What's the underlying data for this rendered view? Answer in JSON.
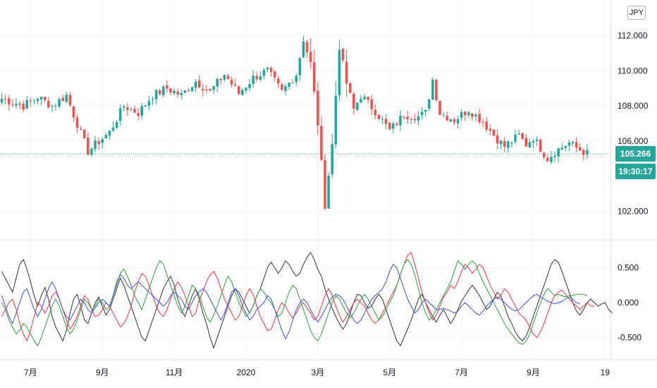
{
  "currency_label": "JPY",
  "last_price": "105.266",
  "countdown": "19:30:17",
  "colors": {
    "up": "#26a69a",
    "down": "#ef5350",
    "osc_black": "#333333",
    "osc_red": "#f23645",
    "osc_green": "#2e9e3f",
    "osc_blue": "#3d4fe0",
    "grid": "#f0f3fa"
  },
  "chart_data": [
    {
      "type": "candlestick",
      "title": "",
      "y_ticks": [
        "112.000",
        "110.000",
        "108.000",
        "106.000",
        "102.000"
      ],
      "y_tick_values": [
        112,
        110,
        108,
        106,
        102
      ],
      "ylim": [
        100.7,
        112.9
      ],
      "last_value": 105.266,
      "x_ticks": [
        "7月",
        "9月",
        "11月",
        "2020",
        "3月",
        "5月",
        "7月",
        "9月",
        "19"
      ],
      "x_tick_index": [
        8,
        28,
        48,
        68,
        88,
        108,
        128,
        148,
        168
      ],
      "n_bars": 170,
      "anchors": [
        [
          0,
          108.4
        ],
        [
          6,
          108.0
        ],
        [
          10,
          108.5
        ],
        [
          14,
          108.0
        ],
        [
          18,
          108.6
        ],
        [
          20,
          107.5
        ],
        [
          24,
          105.4
        ],
        [
          26,
          105.8
        ],
        [
          30,
          106.5
        ],
        [
          34,
          108.0
        ],
        [
          38,
          107.6
        ],
        [
          42,
          108.6
        ],
        [
          46,
          109.0
        ],
        [
          50,
          108.6
        ],
        [
          54,
          109.4
        ],
        [
          58,
          108.8
        ],
        [
          62,
          109.8
        ],
        [
          66,
          108.7
        ],
        [
          70,
          109.6
        ],
        [
          74,
          110.0
        ],
        [
          78,
          108.8
        ],
        [
          82,
          109.8
        ],
        [
          84,
          111.8
        ],
        [
          86,
          110.4
        ],
        [
          88,
          107.0
        ],
        [
          90,
          102.4
        ],
        [
          92,
          105.8
        ],
        [
          94,
          111.4
        ],
        [
          96,
          109.3
        ],
        [
          98,
          107.8
        ],
        [
          100,
          108.6
        ],
        [
          104,
          107.7
        ],
        [
          108,
          106.6
        ],
        [
          112,
          107.5
        ],
        [
          116,
          107.4
        ],
        [
          118,
          107.6
        ],
        [
          120,
          109.5
        ],
        [
          122,
          107.6
        ],
        [
          126,
          107.2
        ],
        [
          130,
          107.8
        ],
        [
          134,
          107.1
        ],
        [
          138,
          106.1
        ],
        [
          140,
          105.7
        ],
        [
          142,
          106.0
        ],
        [
          144,
          106.3
        ],
        [
          146,
          105.8
        ],
        [
          148,
          106.2
        ],
        [
          152,
          105.0
        ],
        [
          154,
          105.4
        ],
        [
          158,
          105.9
        ],
        [
          160,
          105.6
        ],
        [
          163,
          105.3
        ]
      ]
    },
    {
      "type": "line",
      "title": "",
      "y_ticks": [
        "0.500",
        "0.000",
        "-0.500"
      ],
      "y_tick_values": [
        0.5,
        0,
        -0.5
      ],
      "ylim": [
        -0.72,
        0.78
      ],
      "series": [
        {
          "color_key": "osc_black",
          "values": [
            0.45,
            0.35,
            0.25,
            0.15,
            0.35,
            0.55,
            0.62,
            0.48,
            0.3,
            0.1,
            -0.05,
            0.1,
            0.22,
            0.05,
            -0.2,
            -0.35,
            -0.45,
            -0.55,
            -0.4,
            -0.15,
            0.05,
            0.12,
            -0.05,
            -0.25,
            -0.3,
            -0.15,
            0.0,
            0.08,
            -0.05,
            -0.18,
            -0.1,
            0.05,
            0.2,
            0.35,
            0.25,
            0.1,
            -0.05,
            -0.2,
            -0.35,
            -0.5,
            -0.55,
            -0.4,
            -0.25,
            -0.1,
            0.05,
            0.2,
            0.3,
            0.38,
            0.25,
            0.05,
            -0.1,
            -0.2,
            -0.05,
            0.1,
            0.2,
            0.05,
            -0.15,
            -0.3,
            -0.5,
            -0.65,
            -0.5,
            -0.35,
            -0.2,
            -0.05,
            0.1,
            0.2,
            0.15,
            0.05,
            -0.05,
            -0.15,
            -0.05,
            0.1,
            0.2,
            0.35,
            0.5,
            0.58,
            0.5,
            0.42,
            0.5,
            0.6,
            0.55,
            0.45,
            0.38,
            0.42,
            0.55,
            0.65,
            0.72,
            0.62,
            0.48,
            0.38,
            0.2,
            0.05,
            -0.08,
            -0.2,
            -0.3,
            -0.38,
            -0.3,
            -0.15,
            0.0,
            0.12,
            0.1,
            0.0,
            -0.08,
            -0.05,
            0.05,
            0.12,
            0.05,
            -0.1,
            -0.25,
            -0.4,
            -0.55,
            -0.62,
            -0.5,
            -0.38,
            -0.25,
            -0.1,
            0.05,
            0.12,
            0.0,
            -0.1,
            -0.2,
            -0.28,
            -0.18,
            -0.1,
            -0.2,
            -0.3,
            -0.22,
            -0.1,
            0.02,
            0.1,
            0.18,
            0.25,
            0.18,
            0.1,
            0.0,
            -0.1,
            -0.05,
            0.05,
            0.15,
            0.1,
            -0.05,
            -0.2,
            -0.3,
            -0.42,
            -0.5,
            -0.55,
            -0.48,
            -0.35,
            -0.2,
            -0.05,
            0.1,
            0.25,
            0.4,
            0.55,
            0.62,
            0.58,
            0.45,
            0.3,
            0.15,
            0.0,
            -0.12,
            -0.18,
            -0.1,
            0.0,
            0.05,
            0.0,
            -0.05,
            -0.02,
            0.0,
            -0.1,
            -0.15
          ]
        },
        {
          "color_key": "osc_red",
          "values": [
            -0.2,
            -0.1,
            0.0,
            0.05,
            -0.1,
            -0.3,
            -0.45,
            -0.55,
            -0.4,
            -0.2,
            0.0,
            -0.05,
            -0.15,
            -0.05,
            0.1,
            0.15,
            0.05,
            -0.1,
            -0.25,
            -0.38,
            -0.3,
            -0.2,
            -0.05,
            0.1,
            0.05,
            -0.1,
            -0.2,
            -0.18,
            -0.1,
            0.0,
            -0.05,
            -0.15,
            -0.25,
            -0.35,
            -0.3,
            -0.2,
            -0.05,
            0.15,
            0.3,
            0.42,
            0.38,
            0.25,
            0.1,
            -0.05,
            -0.15,
            -0.2,
            -0.1,
            0.05,
            0.2,
            0.3,
            0.22,
            0.1,
            -0.05,
            -0.2,
            -0.15,
            0.05,
            0.15,
            0.3,
            0.4,
            0.45,
            0.35,
            0.2,
            0.05,
            -0.05,
            -0.15,
            -0.25,
            -0.2,
            -0.05,
            0.1,
            0.2,
            0.12,
            -0.05,
            -0.2,
            -0.3,
            -0.4,
            -0.38,
            -0.25,
            -0.1,
            0.0,
            -0.05,
            -0.15,
            -0.22,
            -0.15,
            -0.05,
            0.0,
            -0.08,
            -0.15,
            -0.25,
            -0.2,
            -0.05,
            0.1,
            0.2,
            0.1,
            -0.05,
            -0.18,
            -0.28,
            -0.2,
            -0.1,
            0.0,
            0.05,
            0.0,
            -0.05,
            -0.15,
            -0.25,
            -0.3,
            -0.25,
            -0.15,
            -0.05,
            0.05,
            0.15,
            0.25,
            0.4,
            0.55,
            0.68,
            0.72,
            0.55,
            0.35,
            0.15,
            0.0,
            -0.15,
            -0.25,
            -0.18,
            -0.05,
            0.08,
            0.15,
            0.25,
            0.2,
            0.3,
            0.45,
            0.55,
            0.5,
            0.42,
            0.48,
            0.55,
            0.5,
            0.38,
            0.25,
            0.15,
            0.05,
            0.1,
            0.2,
            0.15,
            0.05,
            -0.05,
            -0.15,
            -0.2,
            -0.25,
            -0.35,
            -0.45,
            -0.5,
            -0.42,
            -0.3,
            -0.15,
            0.0,
            0.1,
            0.15,
            0.18,
            0.12,
            0.05,
            0.0,
            -0.05,
            -0.1,
            -0.05,
            0.0,
            -0.05,
            -0.05
          ]
        },
        {
          "color_key": "osc_green",
          "values": [
            0.0,
            -0.1,
            -0.25,
            -0.35,
            -0.45,
            -0.4,
            -0.3,
            -0.35,
            -0.45,
            -0.55,
            -0.62,
            -0.5,
            -0.35,
            -0.2,
            -0.05,
            0.05,
            -0.05,
            -0.2,
            -0.35,
            -0.45,
            -0.38,
            -0.25,
            -0.1,
            0.05,
            0.0,
            -0.1,
            -0.05,
            0.05,
            0.0,
            -0.1,
            -0.05,
            0.1,
            0.25,
            0.42,
            0.48,
            0.38,
            0.25,
            0.1,
            0.0,
            -0.1,
            0.05,
            0.2,
            0.35,
            0.5,
            0.6,
            0.55,
            0.4,
            0.25,
            0.1,
            -0.05,
            -0.15,
            -0.05,
            0.1,
            0.25,
            0.2,
            0.1,
            -0.05,
            -0.2,
            -0.28,
            -0.18,
            -0.05,
            0.1,
            0.25,
            0.38,
            0.3,
            0.15,
            0.0,
            -0.1,
            -0.2,
            -0.15,
            -0.05,
            0.1,
            0.2,
            0.15,
            0.05,
            0.0,
            -0.1,
            -0.2,
            -0.15,
            0.0,
            0.15,
            0.25,
            0.2,
            0.05,
            -0.1,
            -0.25,
            -0.4,
            -0.5,
            -0.55,
            -0.45,
            -0.3,
            -0.15,
            0.0,
            0.1,
            0.05,
            -0.05,
            -0.15,
            -0.22,
            -0.15,
            -0.05,
            0.05,
            0.12,
            0.05,
            -0.05,
            -0.15,
            -0.25,
            -0.2,
            -0.1,
            0.0,
            0.1,
            0.25,
            0.4,
            0.55,
            0.62,
            0.55,
            0.4,
            0.2,
            0.0,
            -0.15,
            -0.25,
            -0.2,
            -0.1,
            0.0,
            0.1,
            0.2,
            0.3,
            0.45,
            0.6,
            0.55,
            0.48,
            0.55,
            0.6,
            0.55,
            0.42,
            0.3,
            0.2,
            0.1,
            0.0,
            -0.1,
            -0.2,
            -0.3,
            -0.38,
            -0.45,
            -0.52,
            -0.58,
            -0.6,
            -0.55,
            -0.45,
            -0.3,
            -0.15,
            0.0,
            0.12,
            0.2,
            0.15,
            0.1,
            0.12,
            0.1,
            0.08,
            0.1,
            0.1,
            0.12,
            0.12,
            0.12,
            0.1
          ]
        },
        {
          "color_key": "osc_blue",
          "values": [
            0.1,
            -0.05,
            -0.2,
            -0.3,
            -0.15,
            0.0,
            0.15,
            0.2,
            0.05,
            -0.1,
            -0.2,
            -0.1,
            0.05,
            0.2,
            0.3,
            0.2,
            0.05,
            -0.1,
            -0.2,
            -0.25,
            -0.15,
            -0.05,
            0.05,
            0.0,
            -0.1,
            -0.15,
            -0.08,
            0.0,
            0.05,
            0.0,
            -0.05,
            0.1,
            0.3,
            0.4,
            0.35,
            0.25,
            0.2,
            0.25,
            0.3,
            0.25,
            0.2,
            0.15,
            0.1,
            0.05,
            0.0,
            -0.05,
            0.0,
            0.1,
            0.15,
            0.1,
            0.05,
            -0.05,
            -0.1,
            0.0,
            0.1,
            0.15,
            0.2,
            0.15,
            0.05,
            -0.05,
            -0.15,
            -0.25,
            -0.15,
            0.0,
            0.15,
            0.2,
            0.1,
            -0.05,
            -0.15,
            -0.25,
            -0.2,
            -0.1,
            -0.05,
            0.0,
            0.1,
            0.05,
            -0.1,
            -0.25,
            -0.4,
            -0.52,
            -0.42,
            -0.25,
            -0.1,
            0.0,
            0.05,
            0.0,
            -0.1,
            -0.2,
            -0.28,
            -0.2,
            -0.1,
            0.0,
            0.08,
            0.12,
            0.1,
            0.05,
            -0.05,
            -0.15,
            -0.25,
            -0.3,
            -0.25,
            -0.15,
            -0.05,
            0.05,
            0.1,
            0.15,
            0.2,
            0.3,
            0.45,
            0.55,
            0.5,
            0.35,
            0.2,
            0.05,
            -0.05,
            -0.15,
            -0.1,
            0.0,
            0.05,
            0.0,
            -0.05,
            -0.1,
            -0.1,
            -0.08,
            -0.1,
            -0.12,
            -0.15,
            -0.12,
            -0.05,
            0.0,
            -0.05,
            -0.1,
            -0.15,
            -0.18,
            -0.12,
            -0.05,
            0.0,
            0.05,
            0.08,
            0.05,
            0.0,
            -0.05,
            -0.1,
            -0.12,
            -0.1,
            -0.05,
            0.0,
            0.05,
            0.1,
            0.12,
            0.08,
            0.05,
            0.02,
            0.0,
            -0.02,
            0.0,
            0.02,
            0.05,
            0.08,
            0.05,
            0.0,
            -0.02
          ]
        }
      ]
    }
  ]
}
